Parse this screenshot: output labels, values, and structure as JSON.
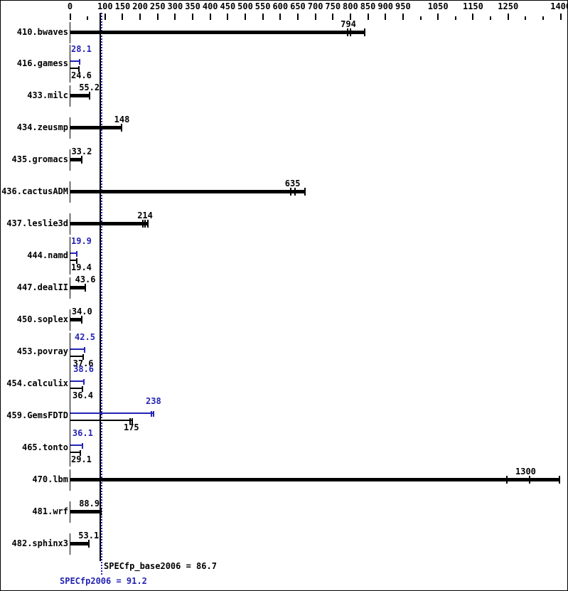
{
  "colors": {
    "bar_black": "#000000",
    "peak_blue": "#2424b4",
    "background": "#ffffff"
  },
  "chart_data": {
    "type": "bar",
    "orientation": "horizontal",
    "title": "",
    "xlabel": "",
    "ylabel": "",
    "legend_position": "none",
    "grid": false,
    "axis": {
      "min": 0,
      "max": 1400,
      "tick_step": 50,
      "labeled_ticks": [
        0,
        100,
        150,
        200,
        250,
        300,
        350,
        400,
        450,
        500,
        550,
        600,
        650,
        700,
        750,
        800,
        850,
        900,
        950,
        1050,
        1150,
        1250,
        1400
      ],
      "minor_ticks": [
        50,
        1000,
        1100,
        1200,
        1300,
        1350
      ]
    },
    "reference_lines": [
      {
        "name": "base",
        "value": 86.7,
        "style": "solid",
        "color": "#000000"
      },
      {
        "name": "peak",
        "value": 91.2,
        "style": "dotted",
        "color": "#2424b4"
      }
    ],
    "benchmarks": [
      {
        "name": "410.bwaves",
        "base": {
          "value": 794,
          "text": "794",
          "bar_max": 840,
          "run_ticks": [
            793,
            801
          ]
        }
      },
      {
        "name": "416.gamess",
        "peak": {
          "value": 28.1,
          "text": "28.1"
        },
        "base": {
          "value": 24.6,
          "text": "24.6"
        }
      },
      {
        "name": "433.milc",
        "base": {
          "value": 55.2,
          "text": "55.2"
        }
      },
      {
        "name": "434.zeusmp",
        "base": {
          "value": 148,
          "text": "148"
        }
      },
      {
        "name": "435.gromacs",
        "base": {
          "value": 33.2,
          "text": "33.2"
        }
      },
      {
        "name": "436.cactusADM",
        "base": {
          "value": 635,
          "text": "635",
          "bar_max": 670,
          "run_ticks": [
            630,
            641
          ]
        }
      },
      {
        "name": "437.leslie3d",
        "base": {
          "value": 214,
          "text": "214",
          "bar_max": 222,
          "run_ticks": [
            208,
            215
          ]
        }
      },
      {
        "name": "444.namd",
        "peak": {
          "value": 19.9,
          "text": "19.9"
        },
        "base": {
          "value": 19.4,
          "text": "19.4"
        }
      },
      {
        "name": "447.dealII",
        "base": {
          "value": 43.6,
          "text": "43.6"
        }
      },
      {
        "name": "450.soplex",
        "base": {
          "value": 34.0,
          "text": "34.0"
        }
      },
      {
        "name": "453.povray",
        "peak": {
          "value": 42.5,
          "text": "42.5"
        },
        "base": {
          "value": 37.6,
          "text": "37.6"
        }
      },
      {
        "name": "454.calculix",
        "peak": {
          "value": 38.6,
          "text": "38.6"
        },
        "base": {
          "value": 36.4,
          "text": "36.4"
        }
      },
      {
        "name": "459.GemsFDTD",
        "peak": {
          "value": 238,
          "text": "238",
          "bar_max": 239,
          "run_ticks": [
            232
          ]
        },
        "base": {
          "value": 175,
          "text": "175",
          "bar_max": 177,
          "run_ticks": [
            171
          ]
        }
      },
      {
        "name": "465.tonto",
        "peak": {
          "value": 36.1,
          "text": "36.1"
        },
        "base": {
          "value": 29.1,
          "text": "29.1"
        }
      },
      {
        "name": "470.lbm",
        "base": {
          "value": 1300,
          "text": "1300",
          "bar_max": 1396,
          "run_ticks": [
            1246,
            1311
          ]
        }
      },
      {
        "name": "481.wrf",
        "base": {
          "value": 88.9,
          "text": "88.9"
        }
      },
      {
        "name": "482.sphinx3",
        "base": {
          "value": 53.1,
          "text": "53.1"
        }
      }
    ],
    "summary": {
      "base_text": "SPECfp_base2006 = 86.7",
      "peak_text": "SPECfp2006 = 91.2",
      "base_value": 86.7,
      "peak_value": 91.2
    }
  }
}
